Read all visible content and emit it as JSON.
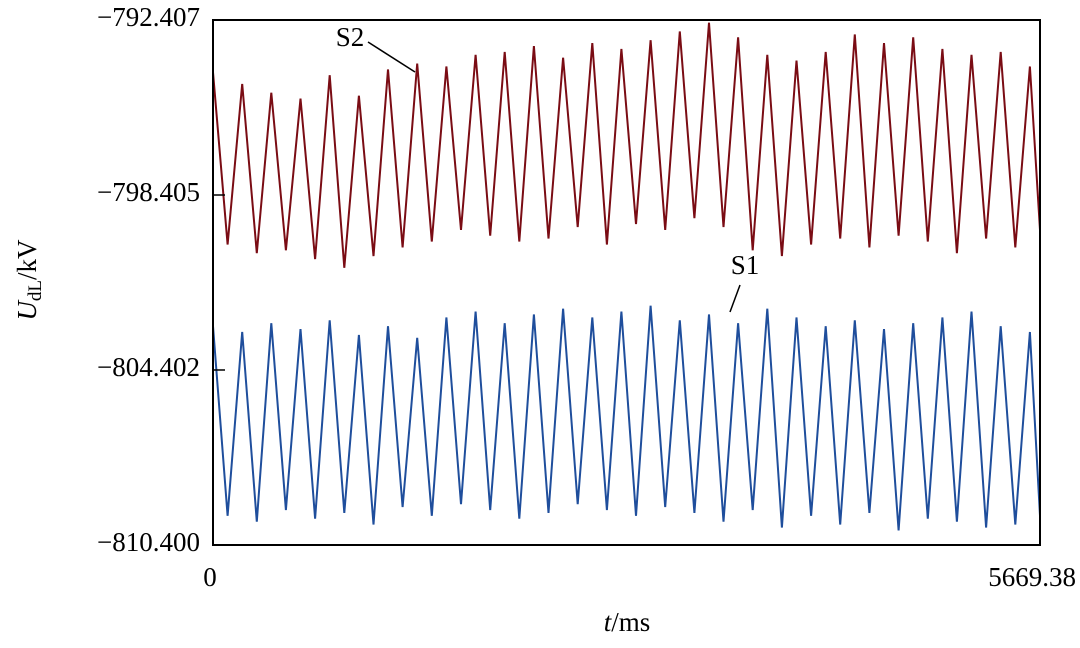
{
  "chart_data": {
    "type": "line",
    "y_label_symbol": "U",
    "y_label_sub": "dL",
    "y_label_unit": "/kV",
    "x_label_symbol": "t",
    "x_label_unit": "/ms",
    "xlim": [
      0,
      5669.38
    ],
    "xticks": [
      0,
      5669.38
    ],
    "ylim": [
      -810.4,
      -792.407
    ],
    "yticks": [
      {
        "value": -810.4,
        "label": "−810.400"
      },
      {
        "value": -804.402,
        "label": "−804.402"
      },
      {
        "value": -798.405,
        "label": "−798.405"
      },
      {
        "value": -792.407,
        "label": "−792.407"
      }
    ],
    "grid": false,
    "x": [
      0,
      100,
      200,
      300,
      400,
      500,
      600,
      700,
      800,
      900,
      1000,
      1100,
      1200,
      1300,
      1400,
      1500,
      1600,
      1700,
      1800,
      1900,
      2000,
      2100,
      2200,
      2300,
      2400,
      2500,
      2600,
      2700,
      2800,
      2900,
      3000,
      3100,
      3200,
      3300,
      3400,
      3500,
      3600,
      3700,
      3800,
      3900,
      4000,
      4100,
      4200,
      4300,
      4400,
      4500,
      4600,
      4700,
      4800,
      4900,
      5000,
      5100,
      5200,
      5300,
      5400,
      5500,
      5600,
      5669.38
    ],
    "series": [
      {
        "name": "S2",
        "color": "#7a0c14",
        "values": [
          -794.2,
          -800.1,
          -794.6,
          -800.4,
          -794.9,
          -800.3,
          -795.1,
          -800.6,
          -794.3,
          -800.9,
          -795.0,
          -800.5,
          -794.1,
          -800.2,
          -793.9,
          -800.0,
          -794.0,
          -799.6,
          -793.6,
          -799.8,
          -793.5,
          -800.0,
          -793.3,
          -799.9,
          -793.7,
          -799.5,
          -793.2,
          -800.1,
          -793.4,
          -799.4,
          -793.1,
          -799.6,
          -792.8,
          -799.2,
          -792.5,
          -799.5,
          -793.0,
          -800.3,
          -793.6,
          -800.5,
          -793.8,
          -800.1,
          -793.5,
          -799.9,
          -792.9,
          -800.2,
          -793.2,
          -799.8,
          -793.0,
          -800.0,
          -793.4,
          -800.4,
          -793.6,
          -799.9,
          -793.5,
          -800.2,
          -794.0,
          -799.6
        ]
      },
      {
        "name": "S1",
        "color": "#1f4e9c",
        "values": [
          -802.9,
          -809.4,
          -803.1,
          -809.6,
          -802.8,
          -809.2,
          -803.0,
          -809.5,
          -802.7,
          -809.3,
          -803.2,
          -809.7,
          -802.9,
          -809.1,
          -803.3,
          -809.4,
          -802.6,
          -809.0,
          -802.4,
          -809.2,
          -802.8,
          -809.5,
          -802.5,
          -809.3,
          -802.3,
          -809.0,
          -802.6,
          -809.2,
          -802.4,
          -809.4,
          -802.2,
          -809.1,
          -802.7,
          -809.3,
          -802.5,
          -809.6,
          -802.8,
          -809.2,
          -802.3,
          -809.8,
          -802.6,
          -809.4,
          -802.9,
          -809.7,
          -802.7,
          -809.3,
          -803.0,
          -809.9,
          -802.8,
          -809.5,
          -802.6,
          -809.6,
          -802.4,
          -809.8,
          -802.9,
          -809.7,
          -803.1,
          -809.4
        ]
      }
    ]
  }
}
